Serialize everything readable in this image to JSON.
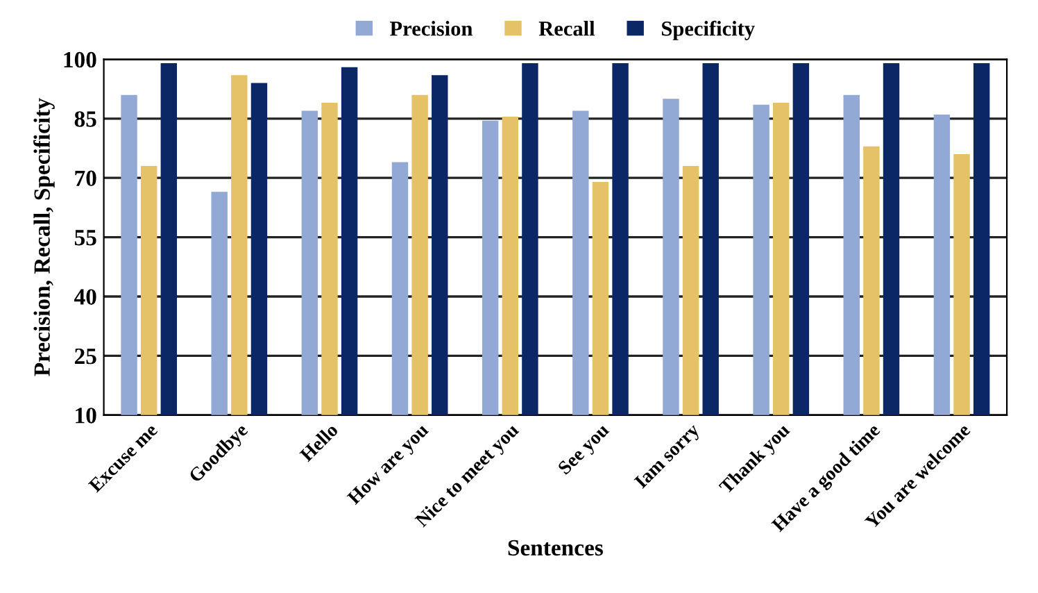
{
  "chart_data": {
    "type": "bar",
    "xlabel": "Sentences",
    "ylabel": "Precision, Recall, Specificity",
    "categories": [
      "Excuse me",
      "Goodbye",
      "Hello",
      "How are you",
      "Nice to meet you",
      "See you",
      "Iam sorry",
      "Thank you",
      "Have a good time",
      "You are welcome"
    ],
    "series": [
      {
        "name": "Precision",
        "color": "#92a9d6",
        "values": [
          91,
          66.5,
          87,
          74,
          84.5,
          87,
          90,
          88.5,
          91,
          86
        ]
      },
      {
        "name": "Recall",
        "color": "#e5c167",
        "values": [
          73,
          96,
          89,
          91,
          85.5,
          69,
          73,
          89,
          78,
          76
        ]
      },
      {
        "name": "Specificity",
        "color": "#0c2766",
        "values": [
          99,
          94,
          98,
          96,
          99,
          99,
          99,
          99,
          99,
          99
        ]
      }
    ],
    "ylim": [
      10,
      100
    ],
    "yticks": [
      10,
      25,
      40,
      55,
      70,
      85,
      100
    ],
    "grid": "y",
    "legend": "top"
  }
}
